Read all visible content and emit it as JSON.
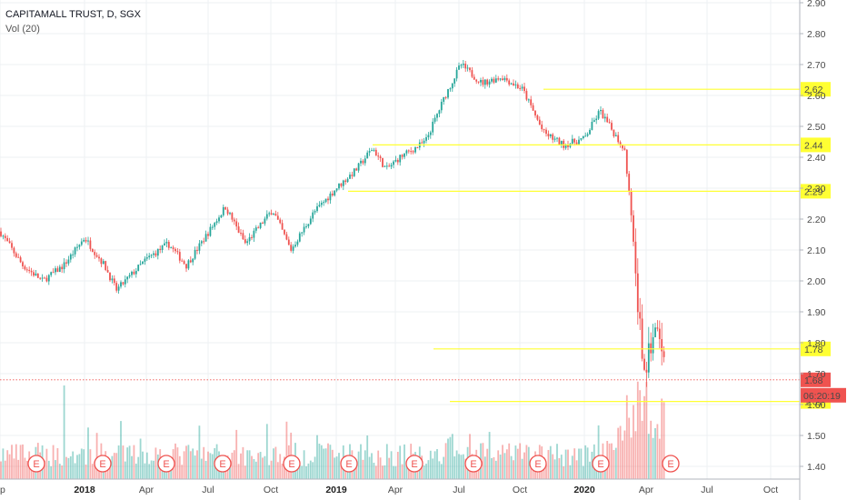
{
  "legend": {
    "title": "CAPITAMALL TRUST, D, SGX",
    "volume": "Vol (20)"
  },
  "colors": {
    "up": "#26a69a",
    "down": "#ef5350",
    "level": "#ffff33",
    "level_label_bg": "#ffff33",
    "price_tag": "#ef5350"
  },
  "chart_data": {
    "type": "candlestick",
    "title": "CAPITAMALL TRUST, D, SGX",
    "indicator": "Vol (20)",
    "ylim": [
      1.35,
      2.9
    ],
    "y_ticks": [
      "2.90",
      "2.80",
      "2.70",
      "2.60",
      "2.50",
      "2.40",
      "2.30",
      "2.20",
      "2.10",
      "2.00",
      "1.90",
      "1.80",
      "1.70",
      "1.60",
      "1.50",
      "1.40"
    ],
    "x_ticks": [
      {
        "label": "ep",
        "bold": false
      },
      {
        "label": "2018",
        "bold": true
      },
      {
        "label": "Apr",
        "bold": false
      },
      {
        "label": "Jul",
        "bold": false
      },
      {
        "label": "Oct",
        "bold": false
      },
      {
        "label": "2019",
        "bold": true
      },
      {
        "label": "Apr",
        "bold": false
      },
      {
        "label": "Jul",
        "bold": false
      },
      {
        "label": "Oct",
        "bold": false
      },
      {
        "label": "2020",
        "bold": true
      },
      {
        "label": "Apr",
        "bold": false
      },
      {
        "label": "Jul",
        "bold": false
      },
      {
        "label": "Oct",
        "bold": false
      }
    ],
    "price_path": [
      [
        "Sep 2017",
        2.16
      ],
      [
        "Oct 2017",
        2.05
      ],
      [
        "Nov 2017",
        2.0
      ],
      [
        "Dec 2017",
        2.05
      ],
      [
        "Jan 2018",
        2.14
      ],
      [
        "Feb 2018",
        2.05
      ],
      [
        "Mar 2018",
        1.97
      ],
      [
        "Apr 2018",
        2.07
      ],
      [
        "May 2018",
        2.12
      ],
      [
        "Jun 2018",
        2.05
      ],
      [
        "Jul 2018",
        2.24
      ],
      [
        "Aug 2018",
        2.12
      ],
      [
        "Sep 2018",
        2.23
      ],
      [
        "Oct 2018",
        2.1
      ],
      [
        "Nov 2018",
        2.22
      ],
      [
        "Dec 2018",
        2.3
      ],
      [
        "Jan 2019",
        2.36
      ],
      [
        "Feb 2019",
        2.43
      ],
      [
        "Mar 2019",
        2.36
      ],
      [
        "Apr 2019",
        2.4
      ],
      [
        "May 2019",
        2.45
      ],
      [
        "Jun 2019",
        2.6
      ],
      [
        "Jul 2019",
        2.7
      ],
      [
        "Aug 2019",
        2.64
      ],
      [
        "Sep 2019",
        2.66
      ],
      [
        "Oct 2019",
        2.62
      ],
      [
        "Nov 2019",
        2.48
      ],
      [
        "Dec 2019",
        2.44
      ],
      [
        "Jan 2020",
        2.46
      ],
      [
        "Feb 2020",
        2.55
      ],
      [
        "Feb 2020 end",
        2.42
      ],
      [
        "Mar 2020",
        1.7
      ],
      [
        "Mar 2020 end",
        1.85
      ],
      [
        "Apr 2020",
        1.68
      ]
    ],
    "levels": [
      {
        "value": 2.62,
        "label": "2.62"
      },
      {
        "value": 2.44,
        "label": "2.44"
      },
      {
        "value": 2.29,
        "label": "2.29"
      },
      {
        "value": 1.78,
        "label": "1.78"
      },
      {
        "value": 1.61,
        "label": "1.61"
      }
    ],
    "last_price": {
      "value": 1.68,
      "label": "1.68",
      "countdown": "06:20:19"
    },
    "earnings_markers": [
      "E",
      "E",
      "E",
      "E",
      "E",
      "E",
      "E",
      "E",
      "E",
      "E",
      "E"
    ]
  }
}
